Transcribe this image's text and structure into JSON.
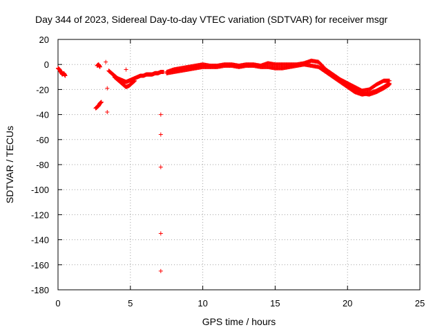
{
  "chart_data": {
    "type": "scatter",
    "title": "Day 344 of 2023, Sidereal Day-to-day VTEC variation (SDTVAR) for receiver msgr",
    "xlabel": "GPS time / hours",
    "ylabel": "SDTVAR / TECUs",
    "xlim": [
      0,
      25
    ],
    "ylim": [
      -180,
      20
    ],
    "xticks": [
      0,
      5,
      10,
      15,
      20,
      25
    ],
    "yticks": [
      20,
      0,
      -20,
      -40,
      -60,
      -80,
      -100,
      -120,
      -140,
      -160,
      -180
    ],
    "grid": true,
    "marker": "+",
    "color": "#ff0000",
    "series": [
      {
        "name": "SDTVAR",
        "segments": [
          {
            "x": [
              0.0,
              0.1,
              0.2,
              0.3,
              0.4,
              0.5
            ],
            "y": [
              -3,
              -4,
              -6,
              -8,
              -7,
              -9
            ]
          },
          {
            "x": [
              2.6,
              2.7,
              2.8,
              2.9,
              3.0
            ],
            "y": [
              -35,
              -34,
              -33,
              -31,
              -30
            ]
          },
          {
            "x": [
              2.7,
              2.8,
              2.9
            ],
            "y": [
              -1,
              0,
              -2
            ]
          },
          {
            "x": [
              3.5,
              3.7,
              3.9,
              4.1,
              4.3,
              4.5,
              4.7,
              4.9,
              5.1,
              5.3,
              5.5,
              5.7,
              5.9,
              6.1,
              6.3,
              6.5,
              6.7,
              6.9,
              7.1,
              7.3
            ],
            "y": [
              -5,
              -7,
              -9,
              -11,
              -12,
              -13,
              -14,
              -13,
              -12,
              -11,
              -10,
              -9,
              -9,
              -8,
              -8,
              -8,
              -7,
              -7,
              -6,
              -6
            ]
          },
          {
            "x": [
              3.9,
              4.1,
              4.3,
              4.5,
              4.7,
              4.9,
              5.1,
              5.3
            ],
            "y": [
              -10,
              -12,
              -14,
              -16,
              -18,
              -17,
              -15,
              -13
            ]
          },
          {
            "x": [
              7.5,
              8.0,
              8.5,
              9.0,
              9.5,
              10.0,
              10.5,
              11.0,
              11.5,
              12.0,
              12.5,
              13.0,
              13.5,
              14.0,
              14.5,
              15.0,
              15.5,
              16.0,
              16.5,
              17.0,
              17.5,
              18.0,
              18.5,
              19.0,
              19.5,
              20.0,
              20.5,
              21.0,
              21.5,
              22.0,
              22.5,
              22.9
            ],
            "y": [
              -6,
              -4,
              -3,
              -2,
              -1,
              0,
              -1,
              -1,
              0,
              0,
              -1,
              0,
              0,
              -1,
              1,
              0,
              0,
              0,
              0,
              1,
              3,
              2,
              -4,
              -8,
              -12,
              -15,
              -18,
              -21,
              -20,
              -16,
              -13,
              -13
            ]
          },
          {
            "x": [
              7.5,
              8.0,
              8.5,
              9.0,
              9.5,
              10.0,
              10.5,
              11.0,
              11.5,
              12.0,
              12.5,
              13.0,
              13.5,
              14.0,
              14.5,
              15.0,
              15.5,
              16.0,
              16.5,
              17.0,
              17.5,
              18.0,
              18.5,
              19.0,
              19.5,
              20.0,
              20.5,
              21.0,
              21.5,
              22.0,
              22.5,
              22.9
            ],
            "y": [
              -7,
              -6,
              -5,
              -4,
              -3,
              -2,
              -2,
              -2,
              -1,
              -1,
              -2,
              -1,
              -1,
              -2,
              -2,
              -3,
              -3,
              -2,
              -1,
              0,
              -1,
              -2,
              -6,
              -10,
              -14,
              -18,
              -22,
              -24,
              -23,
              -21,
              -18,
              -15
            ]
          },
          {
            "x": [
              20.0,
              20.5,
              21.0,
              21.5,
              22.0,
              22.5,
              22.9
            ],
            "y": [
              -16,
              -20,
              -23,
              -24,
              -22,
              -19,
              -16
            ]
          }
        ],
        "outliers": {
          "x": [
            3.4,
            3.4,
            3.3,
            4.7,
            7.1,
            7.1,
            7.1,
            7.1,
            7.1
          ],
          "y": [
            -38,
            -19,
            2,
            -4,
            -40,
            -56,
            -82,
            -135,
            -165
          ]
        }
      }
    ]
  }
}
